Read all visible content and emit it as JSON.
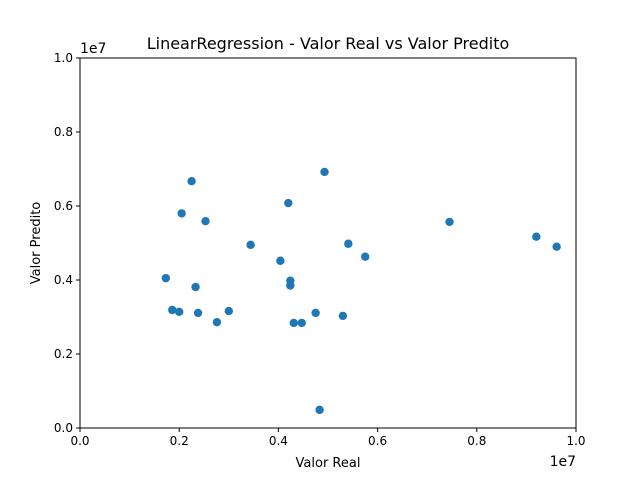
{
  "chart_data": {
    "type": "scatter",
    "title": "LinearRegression - Valor Real vs Valor Predito",
    "xlabel": "Valor Real",
    "ylabel": "Valor Predito",
    "x_offset_label": "1e7",
    "y_offset_label": "1e7",
    "xlim": [
      0,
      1.0
    ],
    "ylim": [
      0,
      1.0
    ],
    "xticks": [
      "0.0",
      "0.2",
      "0.4",
      "0.6",
      "0.8",
      "1.0"
    ],
    "yticks": [
      "0.0",
      "0.2",
      "0.4",
      "0.6",
      "0.8",
      "1.0"
    ],
    "grid": false,
    "point_color": "#1f77b4",
    "points": [
      {
        "x": 0.173,
        "y": 0.405
      },
      {
        "x": 0.186,
        "y": 0.319
      },
      {
        "x": 0.2,
        "y": 0.314
      },
      {
        "x": 0.205,
        "y": 0.58
      },
      {
        "x": 0.225,
        "y": 0.667
      },
      {
        "x": 0.233,
        "y": 0.381
      },
      {
        "x": 0.238,
        "y": 0.311
      },
      {
        "x": 0.253,
        "y": 0.559
      },
      {
        "x": 0.276,
        "y": 0.286
      },
      {
        "x": 0.3,
        "y": 0.316
      },
      {
        "x": 0.344,
        "y": 0.495
      },
      {
        "x": 0.404,
        "y": 0.452
      },
      {
        "x": 0.42,
        "y": 0.608
      },
      {
        "x": 0.424,
        "y": 0.398
      },
      {
        "x": 0.424,
        "y": 0.385
      },
      {
        "x": 0.431,
        "y": 0.284
      },
      {
        "x": 0.447,
        "y": 0.284
      },
      {
        "x": 0.475,
        "y": 0.311
      },
      {
        "x": 0.483,
        "y": 0.049
      },
      {
        "x": 0.493,
        "y": 0.692
      },
      {
        "x": 0.53,
        "y": 0.303
      },
      {
        "x": 0.541,
        "y": 0.498
      },
      {
        "x": 0.575,
        "y": 0.463
      },
      {
        "x": 0.745,
        "y": 0.557
      },
      {
        "x": 0.92,
        "y": 0.517
      },
      {
        "x": 0.961,
        "y": 0.49
      }
    ]
  }
}
